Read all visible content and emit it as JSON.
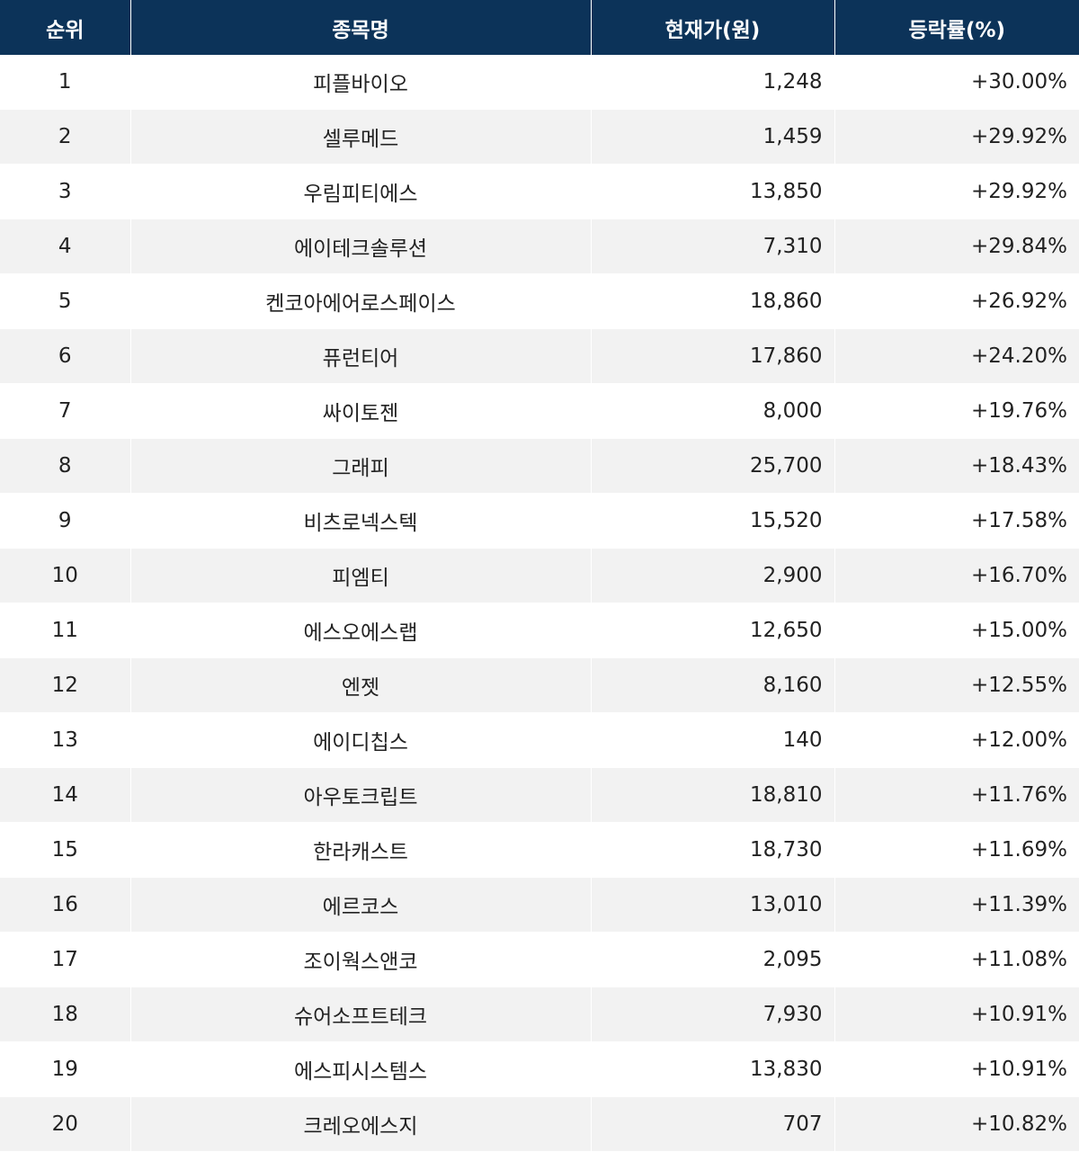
{
  "table": {
    "headers": [
      "순위",
      "종목명",
      "현재가(원)",
      "등락률(%)"
    ],
    "rows": [
      {
        "rank": "1",
        "name": "피플바이오",
        "price": "1,248",
        "change": "+30.00%"
      },
      {
        "rank": "2",
        "name": "셀루메드",
        "price": "1,459",
        "change": "+29.92%"
      },
      {
        "rank": "3",
        "name": "우림피티에스",
        "price": "13,850",
        "change": "+29.92%"
      },
      {
        "rank": "4",
        "name": "에이테크솔루션",
        "price": "7,310",
        "change": "+29.84%"
      },
      {
        "rank": "5",
        "name": "켄코아에어로스페이스",
        "price": "18,860",
        "change": "+26.92%"
      },
      {
        "rank": "6",
        "name": "퓨런티어",
        "price": "17,860",
        "change": "+24.20%"
      },
      {
        "rank": "7",
        "name": "싸이토젠",
        "price": "8,000",
        "change": "+19.76%"
      },
      {
        "rank": "8",
        "name": "그래피",
        "price": "25,700",
        "change": "+18.43%"
      },
      {
        "rank": "9",
        "name": "비츠로넥스텍",
        "price": "15,520",
        "change": "+17.58%"
      },
      {
        "rank": "10",
        "name": "피엠티",
        "price": "2,900",
        "change": "+16.70%"
      },
      {
        "rank": "11",
        "name": "에스오에스랩",
        "price": "12,650",
        "change": "+15.00%"
      },
      {
        "rank": "12",
        "name": "엔젯",
        "price": "8,160",
        "change": "+12.55%"
      },
      {
        "rank": "13",
        "name": "에이디칩스",
        "price": "140",
        "change": "+12.00%"
      },
      {
        "rank": "14",
        "name": "아우토크립트",
        "price": "18,810",
        "change": "+11.76%"
      },
      {
        "rank": "15",
        "name": "한라캐스트",
        "price": "18,730",
        "change": "+11.69%"
      },
      {
        "rank": "16",
        "name": "에르코스",
        "price": "13,010",
        "change": "+11.39%"
      },
      {
        "rank": "17",
        "name": "조이웍스앤코",
        "price": "2,095",
        "change": "+11.08%"
      },
      {
        "rank": "18",
        "name": "슈어소프트테크",
        "price": "7,930",
        "change": "+10.91%"
      },
      {
        "rank": "19",
        "name": "에스피시스템스",
        "price": "13,830",
        "change": "+10.91%"
      },
      {
        "rank": "20",
        "name": "크레오에스지",
        "price": "707",
        "change": "+10.82%"
      }
    ]
  },
  "colors": {
    "header_bg": "#0c3359",
    "header_text": "#ffffff",
    "row_alt_bg": "#f2f2f2",
    "row_bg": "#ffffff"
  }
}
